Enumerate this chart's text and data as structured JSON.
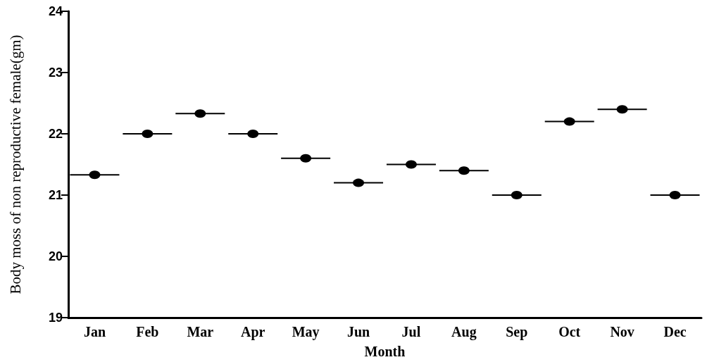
{
  "chart_data": {
    "type": "box",
    "xlabel": "Month",
    "ylabel": "Body moss of non reproductive female(gm)",
    "categories": [
      "Jan",
      "Feb",
      "Mar",
      "Apr",
      "May",
      "Jun",
      "Jul",
      "Aug",
      "Sep",
      "Oct",
      "Nov",
      "Dec"
    ],
    "color": "#000000",
    "boxes": [
      {
        "low": 21.33,
        "q1": 21.33,
        "median": 21.33,
        "q3": 21.33,
        "high": 21.33
      },
      {
        "low": 22,
        "q1": 22,
        "median": 22,
        "q3": 22,
        "high": 22
      },
      {
        "low": 22.33,
        "q1": 22.33,
        "median": 22.33,
        "q3": 22.33,
        "high": 22.33
      },
      {
        "low": 22,
        "q1": 22,
        "median": 22,
        "q3": 22,
        "high": 22
      },
      {
        "low": 21.6,
        "q1": 21.6,
        "median": 21.6,
        "q3": 21.6,
        "high": 21.6
      },
      {
        "low": 21.2,
        "q1": 21.2,
        "median": 21.2,
        "q3": 21.2,
        "high": 21.2
      },
      {
        "low": 21.5,
        "q1": 21.5,
        "median": 21.5,
        "q3": 21.5,
        "high": 21.5
      },
      {
        "low": 21.4,
        "q1": 21.4,
        "median": 21.4,
        "q3": 21.4,
        "high": 21.4
      },
      {
        "low": 21,
        "q1": 21,
        "median": 21,
        "q3": 21,
        "high": 21
      },
      {
        "low": 22.2,
        "q1": 22.2,
        "median": 22.2,
        "q3": 22.2,
        "high": 22.2
      },
      {
        "low": 22.4,
        "q1": 22.4,
        "median": 22.4,
        "q3": 22.4,
        "high": 22.4
      },
      {
        "low": 21,
        "q1": 21,
        "median": 21,
        "q3": 21,
        "high": 21
      }
    ],
    "series": [
      {
        "type": "scatter",
        "color": "#000000",
        "marker": "circle",
        "x": [
          "Jan",
          "Feb",
          "Mar",
          "Apr",
          "May",
          "Jun",
          "Jul",
          "Aug",
          "Sep",
          "Oct",
          "Nov",
          "Dec"
        ],
        "values": [
          21.33,
          22,
          22.33,
          22,
          21.6,
          21.2,
          21.5,
          21.4,
          21,
          22.2,
          22.4,
          21
        ]
      }
    ],
    "ylim": [
      19,
      24
    ],
    "yticks": [
      19,
      20,
      21,
      22,
      23,
      24
    ],
    "grid": false
  }
}
